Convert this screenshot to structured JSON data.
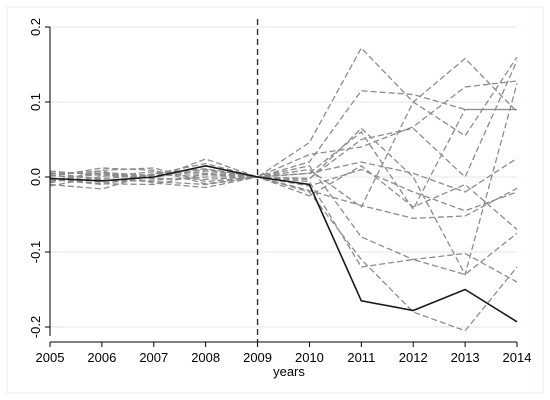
{
  "chart_data": {
    "type": "line",
    "title": "",
    "xlabel": "years",
    "ylabel": "",
    "x": [
      2005,
      2006,
      2007,
      2008,
      2009,
      2010,
      2011,
      2012,
      2013,
      2014
    ],
    "xlim": [
      2005,
      2014
    ],
    "ylim": [
      -0.22,
      0.2
    ],
    "x_ticks": [
      "2005",
      "2006",
      "2007",
      "2008",
      "2009",
      "2010",
      "2011",
      "2012",
      "2013",
      "2014"
    ],
    "y_ticks": [
      "-0.2",
      "-0.1",
      "0.0",
      "0.1",
      "0.2"
    ],
    "y_tick_values": [
      -0.2,
      -0.1,
      0.0,
      0.1,
      0.2
    ],
    "grid": "horizontal",
    "reference_line_x": 2009,
    "colors": {
      "treated": "#1a1a1a",
      "placebo": "#8c8c8c",
      "grid": "#dbeaea",
      "reference": "#333333"
    },
    "treated_series": {
      "values": [
        -0.002,
        -0.005,
        0.0,
        0.015,
        0.0,
        -0.01,
        -0.165,
        -0.178,
        -0.15,
        -0.193
      ]
    },
    "placebo_series": [
      {
        "values": [
          -0.004,
          0.004,
          -0.002,
          0.024,
          0.0,
          0.046,
          0.172,
          0.1,
          0.055,
          0.16
        ]
      },
      {
        "values": [
          0.002,
          -0.002,
          0.003,
          0.01,
          0.0,
          0.02,
          0.115,
          0.11,
          0.09,
          0.09
        ]
      },
      {
        "values": [
          -0.006,
          0.006,
          0.002,
          0.003,
          0.0,
          0.01,
          -0.04,
          0.1,
          0.158,
          0.087
        ]
      },
      {
        "values": [
          0.003,
          -0.007,
          -0.004,
          0.0,
          0.0,
          -0.003,
          0.065,
          0.0,
          -0.13,
          0.125
        ]
      },
      {
        "values": [
          -0.008,
          0.009,
          0.012,
          -0.006,
          0.0,
          0.03,
          0.04,
          0.067,
          0.12,
          0.128
        ]
      },
      {
        "values": [
          0.006,
          -0.004,
          -0.006,
          -0.01,
          0.0,
          0.005,
          0.06,
          -0.043,
          0.09,
          0.09
        ]
      },
      {
        "values": [
          -0.003,
          -0.01,
          0.004,
          0.018,
          0.0,
          -0.012,
          0.01,
          -0.02,
          -0.045,
          -0.02
        ]
      },
      {
        "values": [
          0.004,
          0.008,
          -0.008,
          -0.014,
          0.0,
          -0.018,
          -0.038,
          -0.055,
          -0.052,
          -0.015
        ]
      },
      {
        "values": [
          -0.01,
          -0.016,
          0.005,
          0.011,
          0.0,
          0.005,
          0.02,
          0.005,
          -0.02,
          0.025
        ]
      },
      {
        "values": [
          0.008,
          0.002,
          -0.002,
          -0.003,
          0.0,
          -0.006,
          -0.12,
          -0.11,
          -0.13,
          -0.075
        ]
      },
      {
        "values": [
          -0.012,
          0.001,
          0.007,
          0.005,
          0.0,
          -0.02,
          -0.11,
          -0.18,
          -0.205,
          -0.12
        ]
      },
      {
        "values": [
          0.001,
          0.012,
          0.009,
          -0.009,
          0.0,
          -0.025,
          0.015,
          -0.04,
          -0.01,
          -0.07
        ]
      },
      {
        "values": [
          -0.001,
          -0.009,
          -0.01,
          0.004,
          0.0,
          0.015,
          -0.08,
          -0.11,
          -0.102,
          -0.14
        ]
      },
      {
        "values": [
          0.005,
          0.005,
          0.0,
          0.008,
          0.0,
          -0.002,
          0.05,
          0.065,
          0.0,
          0.155
        ]
      }
    ]
  }
}
